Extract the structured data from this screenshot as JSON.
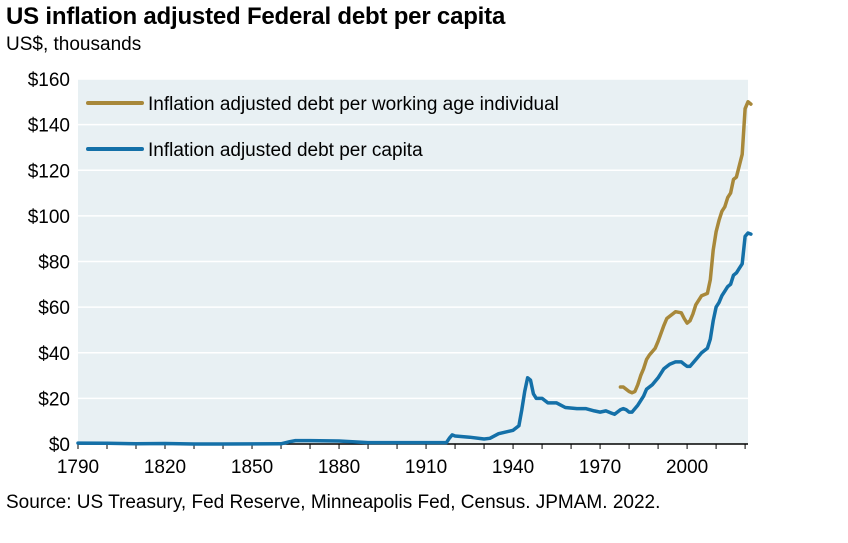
{
  "title": "US inflation adjusted Federal debt per capita",
  "subtitle": "US$, thousands",
  "source": "Source: US Treasury, Fed Reserve, Minneapolis Fed, Census. JPMAM. 2022.",
  "colors": {
    "plot_bg": "#e8f0f3",
    "gridline": "#ffffff",
    "working_age": "#a8883a",
    "per_capita": "#1470a8",
    "axis": "#000000"
  },
  "chart_data": {
    "type": "line",
    "title": "US inflation adjusted Federal debt per capita",
    "ylabel": "US$, thousands",
    "xlim": [
      1790,
      2021
    ],
    "ylim": [
      0,
      160
    ],
    "x_ticks": [
      1790,
      1820,
      1850,
      1880,
      1910,
      1940,
      1970,
      2000
    ],
    "x_tick_labels": [
      "1790",
      "1820",
      "1850",
      "1880",
      "1910",
      "1940",
      "1970",
      "2000"
    ],
    "y_ticks": [
      0,
      20,
      40,
      60,
      80,
      100,
      120,
      140,
      160
    ],
    "y_tick_labels": [
      "$0",
      "$20",
      "$40",
      "$60",
      "$80",
      "$100",
      "$120",
      "$140",
      "$160"
    ],
    "grid": "horizontal",
    "legend_position": "top-left",
    "series": [
      {
        "name": "Inflation adjusted debt per working age individual",
        "color": "#a8883a",
        "points": [
          [
            1977,
            25
          ],
          [
            1978,
            25
          ],
          [
            1980,
            23
          ],
          [
            1981,
            22.5
          ],
          [
            1982,
            23
          ],
          [
            1983,
            26
          ],
          [
            1984,
            30
          ],
          [
            1985,
            33
          ],
          [
            1986,
            37
          ],
          [
            1987,
            39
          ],
          [
            1989,
            42
          ],
          [
            1990,
            45
          ],
          [
            1992,
            52
          ],
          [
            1993,
            55
          ],
          [
            1995,
            57
          ],
          [
            1996,
            58
          ],
          [
            1998,
            57.5
          ],
          [
            1999,
            55
          ],
          [
            2000,
            53
          ],
          [
            2001,
            54
          ],
          [
            2002,
            57
          ],
          [
            2003,
            61
          ],
          [
            2005,
            65
          ],
          [
            2007,
            66
          ],
          [
            2008,
            72
          ],
          [
            2009,
            85
          ],
          [
            2010,
            93
          ],
          [
            2011,
            98
          ],
          [
            2012,
            102
          ],
          [
            2013,
            104
          ],
          [
            2014,
            108
          ],
          [
            2015,
            110
          ],
          [
            2016,
            116
          ],
          [
            2017,
            117
          ],
          [
            2018,
            122
          ],
          [
            2019,
            127
          ],
          [
            2020,
            147
          ],
          [
            2021,
            150
          ],
          [
            2022,
            149
          ]
        ]
      },
      {
        "name": "Inflation adjusted debt per capita",
        "color": "#1470a8",
        "points": [
          [
            1790,
            0.4
          ],
          [
            1800,
            0.3
          ],
          [
            1810,
            0.1
          ],
          [
            1820,
            0.2
          ],
          [
            1830,
            0
          ],
          [
            1840,
            0
          ],
          [
            1860,
            0.1
          ],
          [
            1863,
            1
          ],
          [
            1865,
            1.5
          ],
          [
            1870,
            1.5
          ],
          [
            1880,
            1.3
          ],
          [
            1890,
            0.6
          ],
          [
            1900,
            0.6
          ],
          [
            1917,
            0.6
          ],
          [
            1918,
            2.5
          ],
          [
            1919,
            4
          ],
          [
            1920,
            3.5
          ],
          [
            1925,
            3
          ],
          [
            1930,
            2.2
          ],
          [
            1932,
            2.5
          ],
          [
            1935,
            4.5
          ],
          [
            1940,
            6
          ],
          [
            1942,
            8
          ],
          [
            1943,
            15
          ],
          [
            1944,
            23
          ],
          [
            1945,
            29
          ],
          [
            1946,
            28
          ],
          [
            1947,
            22
          ],
          [
            1948,
            20
          ],
          [
            1950,
            20
          ],
          [
            1952,
            18
          ],
          [
            1955,
            18
          ],
          [
            1958,
            16
          ],
          [
            1962,
            15.5
          ],
          [
            1965,
            15.5
          ],
          [
            1968,
            14.5
          ],
          [
            1970,
            14
          ],
          [
            1972,
            14.5
          ],
          [
            1974,
            13.5
          ],
          [
            1975,
            13
          ],
          [
            1977,
            15
          ],
          [
            1978,
            15.5
          ],
          [
            1979,
            15
          ],
          [
            1980,
            14
          ],
          [
            1981,
            14
          ],
          [
            1983,
            17
          ],
          [
            1985,
            21
          ],
          [
            1986,
            24
          ],
          [
            1988,
            26
          ],
          [
            1990,
            29
          ],
          [
            1992,
            33
          ],
          [
            1994,
            35
          ],
          [
            1996,
            36
          ],
          [
            1998,
            36
          ],
          [
            1999,
            35
          ],
          [
            2000,
            34
          ],
          [
            2001,
            34
          ],
          [
            2003,
            37
          ],
          [
            2005,
            40
          ],
          [
            2007,
            42
          ],
          [
            2008,
            46
          ],
          [
            2009,
            54
          ],
          [
            2010,
            60
          ],
          [
            2011,
            62
          ],
          [
            2012,
            65
          ],
          [
            2013,
            67
          ],
          [
            2014,
            69
          ],
          [
            2015,
            70
          ],
          [
            2016,
            74
          ],
          [
            2017,
            75
          ],
          [
            2018,
            77
          ],
          [
            2019,
            79
          ],
          [
            2020,
            91
          ],
          [
            2021,
            92.5
          ],
          [
            2022,
            92
          ]
        ]
      }
    ]
  }
}
